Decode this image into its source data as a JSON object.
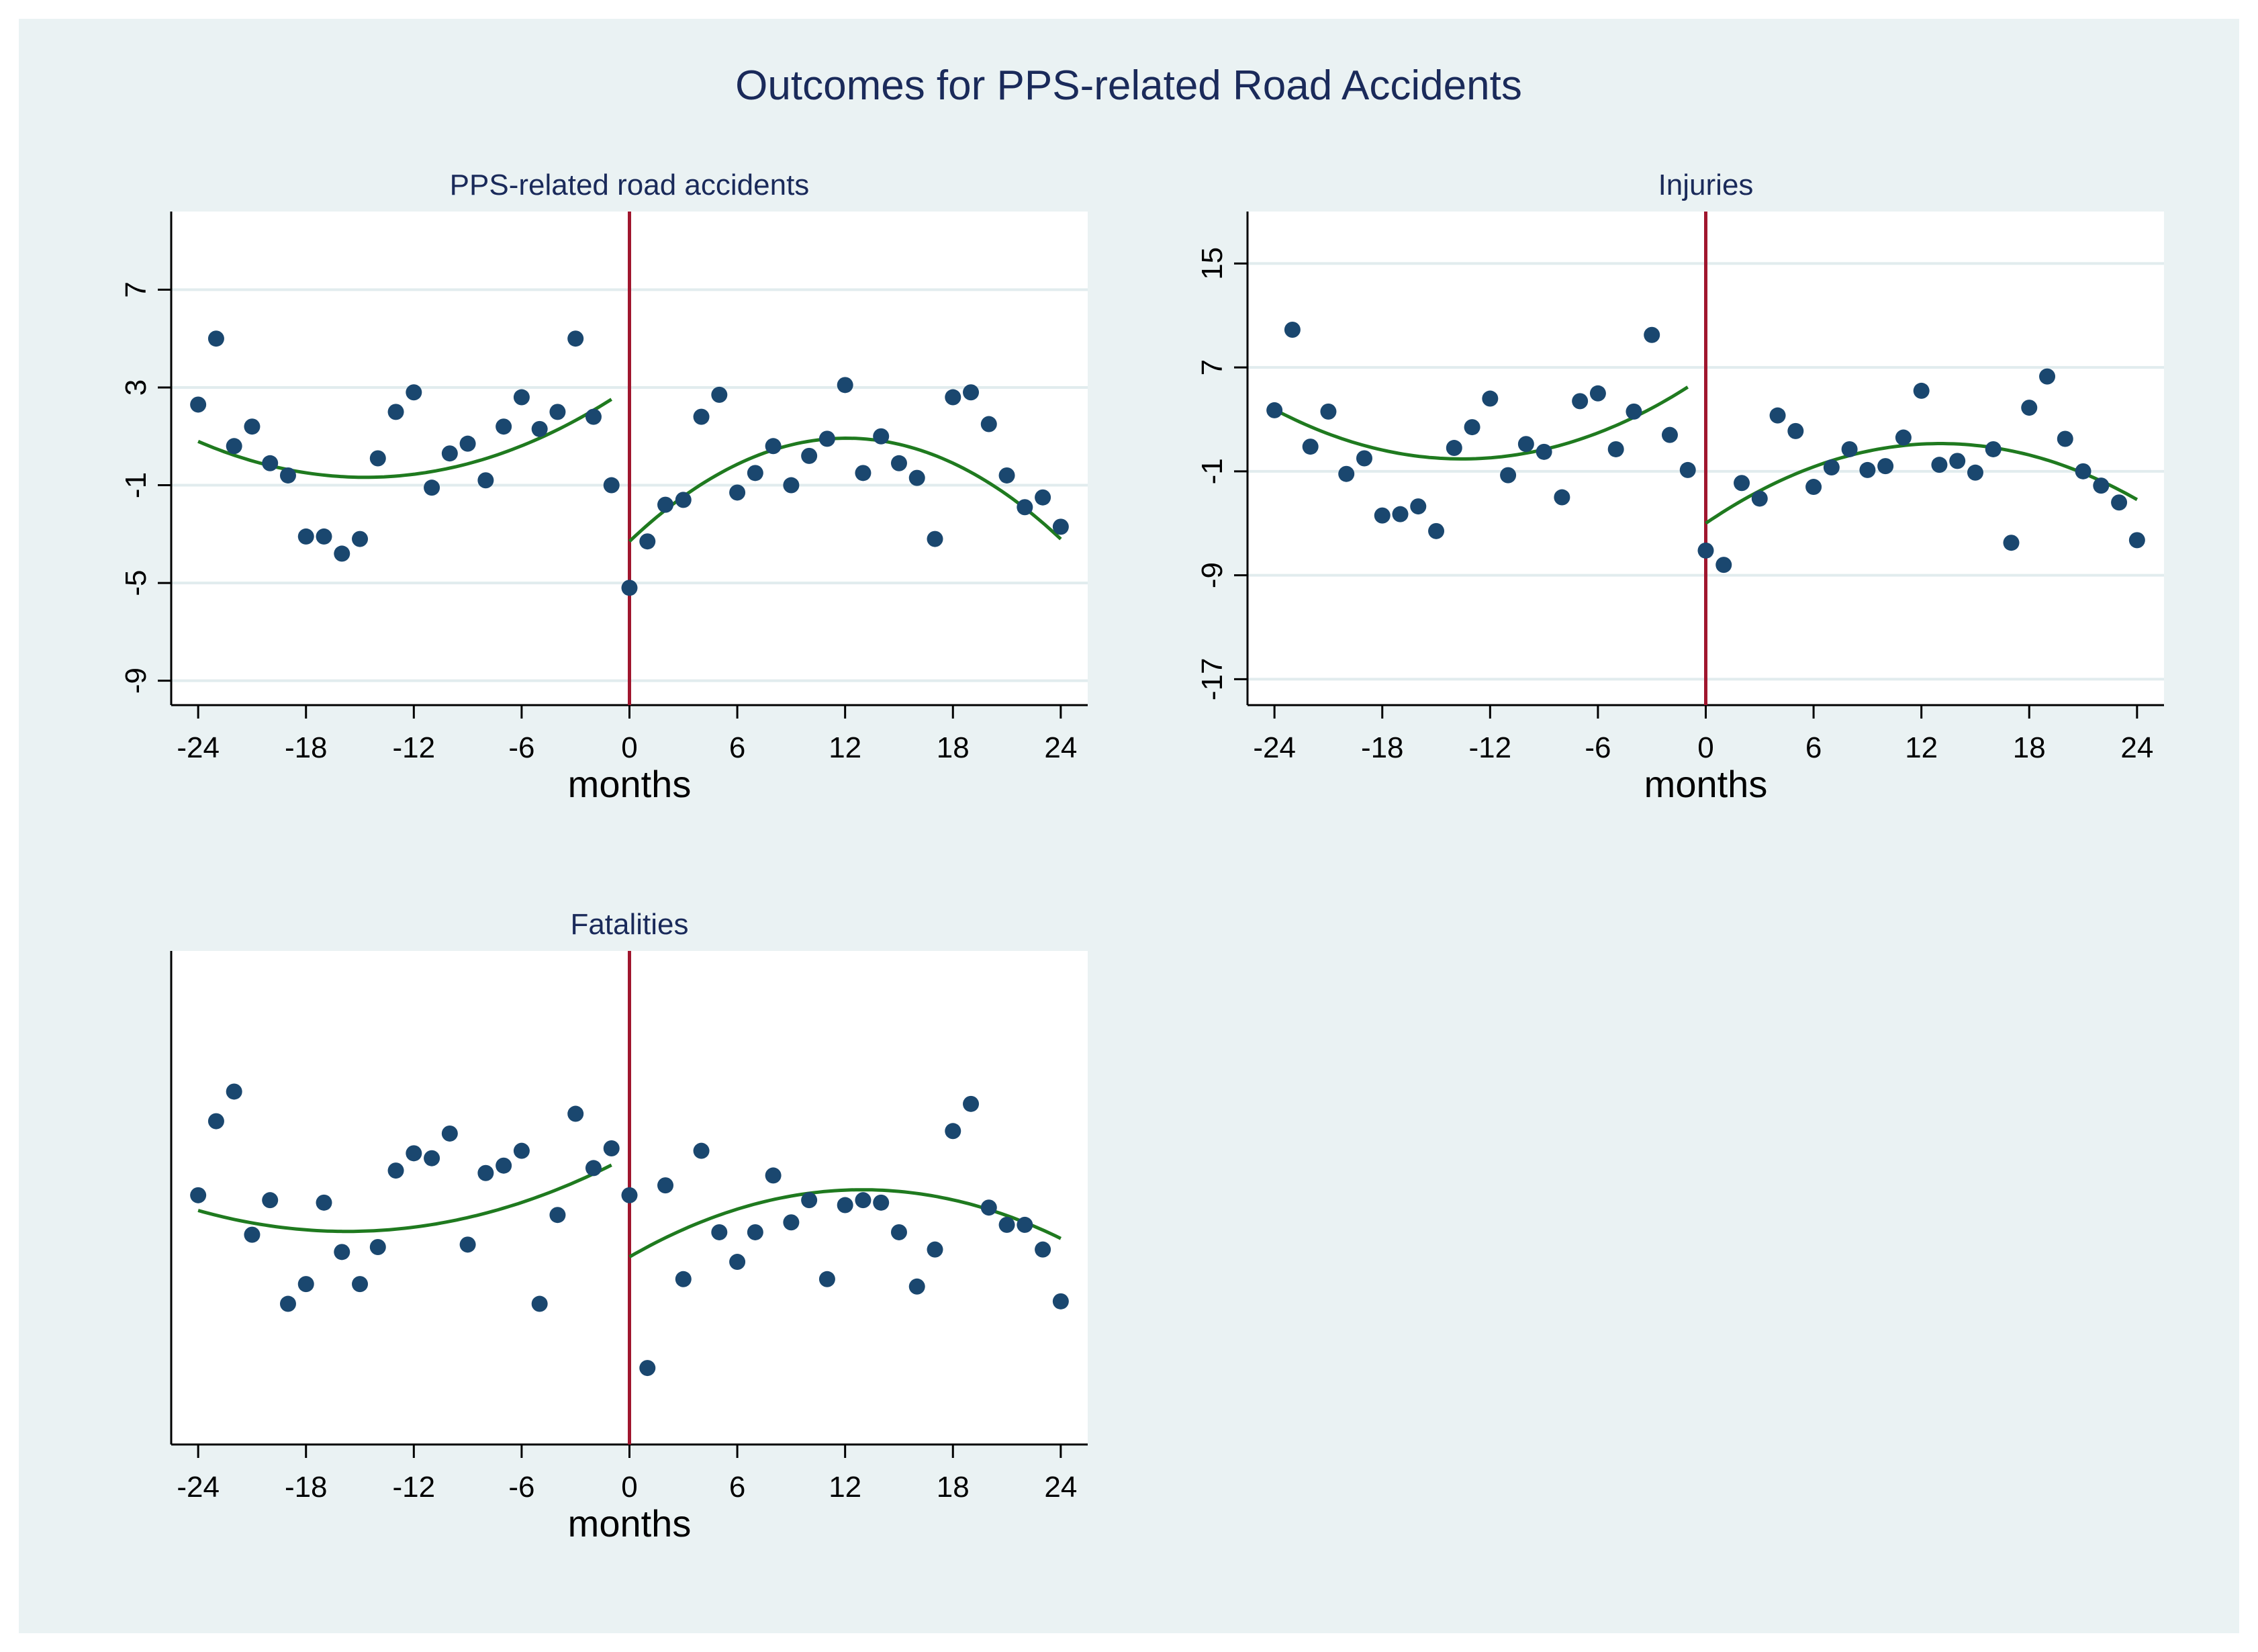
{
  "figure": {
    "title": "Outcomes for PPS-related Road Accidents",
    "colors": {
      "outer_background": "#eaf2f3",
      "plot_background": "#ffffff",
      "gridline": "#e1ecee",
      "axis": "#000000",
      "marker": "#1a476f",
      "fit_line": "#1f7a1f",
      "cutoff_line": "#a0162e",
      "title_text": "#1a2a5a",
      "subtitle_text": "#1a2a5a"
    }
  },
  "chart_data": [
    {
      "type": "scatter",
      "title": "PPS-related road accidents",
      "xlabel": "months",
      "ylabel": "",
      "xlim": [
        -25.5,
        25.5
      ],
      "ylim": [
        -10,
        10.2
      ],
      "xticks": [
        -24,
        -18,
        -12,
        -6,
        0,
        6,
        12,
        18,
        24
      ],
      "yticks": [
        -9,
        -5,
        -1,
        3,
        7
      ],
      "grid": true,
      "cutoff_x": 0,
      "points": [
        [
          -24,
          2.3
        ],
        [
          -23,
          5
        ],
        [
          -22,
          0.6
        ],
        [
          -21,
          1.4
        ],
        [
          -20,
          -0.1
        ],
        [
          -19,
          -0.6
        ],
        [
          -18,
          -3.1
        ],
        [
          -17,
          -3.1
        ],
        [
          -16,
          -3.8
        ],
        [
          -15,
          -3.2
        ],
        [
          -14,
          0.1
        ],
        [
          -13,
          2
        ],
        [
          -12,
          2.8
        ],
        [
          -11,
          -1.1
        ],
        [
          -10,
          0.3
        ],
        [
          -9,
          0.7
        ],
        [
          -8,
          -0.8
        ],
        [
          -7,
          1.4
        ],
        [
          -6,
          2.6
        ],
        [
          -5,
          1.3
        ],
        [
          -4,
          2
        ],
        [
          -3,
          5
        ],
        [
          -2,
          1.8
        ],
        [
          -1,
          -1
        ],
        [
          0,
          -5.2
        ],
        [
          1,
          -3.3
        ],
        [
          2,
          -1.8
        ],
        [
          3,
          -1.6
        ],
        [
          4,
          1.8
        ],
        [
          5,
          2.7
        ],
        [
          6,
          -1.3
        ],
        [
          7,
          -0.5
        ],
        [
          8,
          0.6
        ],
        [
          9,
          -1
        ],
        [
          10,
          0.2
        ],
        [
          11,
          0.9
        ],
        [
          12,
          3.1
        ],
        [
          13,
          -0.5
        ],
        [
          14,
          1
        ],
        [
          15,
          -0.1
        ],
        [
          16,
          -0.7
        ],
        [
          17,
          -3.2
        ],
        [
          18,
          2.6
        ],
        [
          19,
          2.8
        ],
        [
          20,
          1.5
        ],
        [
          21,
          -0.6
        ],
        [
          22,
          -1.9
        ],
        [
          23,
          -1.5
        ],
        [
          24,
          -2.7
        ]
      ],
      "fit_pre": {
        "x_range": [
          -24,
          -1
        ],
        "a": 3.0,
        "b": 0.5,
        "c": 0.017
      },
      "fit_post": {
        "x_range": [
          0,
          24
        ],
        "a": -3.3,
        "b": 0.7,
        "c": -0.029
      }
    },
    {
      "type": "scatter",
      "title": "Injuries",
      "xlabel": "months",
      "ylabel": "",
      "xlim": [
        -25.5,
        25.5
      ],
      "ylim": [
        -19,
        19
      ],
      "xticks": [
        -24,
        -18,
        -12,
        -6,
        0,
        6,
        12,
        18,
        24
      ],
      "yticks": [
        -17,
        -9,
        -1,
        7,
        15
      ],
      "grid": true,
      "cutoff_x": 0,
      "points": [
        [
          -24,
          3.7
        ],
        [
          -23,
          9.9
        ],
        [
          -22,
          0.9
        ],
        [
          -21,
          3.6
        ],
        [
          -20,
          -1.2
        ],
        [
          -19,
          0
        ],
        [
          -18,
          -4.4
        ],
        [
          -17,
          -4.3
        ],
        [
          -16,
          -3.7
        ],
        [
          -15,
          -5.6
        ],
        [
          -14,
          0.8
        ],
        [
          -13,
          2.4
        ],
        [
          -12,
          4.6
        ],
        [
          -11,
          -1.3
        ],
        [
          -10,
          1.1
        ],
        [
          -9,
          0.5
        ],
        [
          -8,
          -3
        ],
        [
          -7,
          4.4
        ],
        [
          -6,
          5
        ],
        [
          -5,
          0.7
        ],
        [
          -4,
          3.6
        ],
        [
          -3,
          9.5
        ],
        [
          -2,
          1.8
        ],
        [
          -1,
          -0.9
        ],
        [
          0,
          -7.1
        ],
        [
          1,
          -8.2
        ],
        [
          2,
          -1.9
        ],
        [
          3,
          -3.1
        ],
        [
          4,
          3.3
        ],
        [
          5,
          2.1
        ],
        [
          6,
          -2.2
        ],
        [
          7,
          -0.7
        ],
        [
          8,
          0.7
        ],
        [
          9,
          -0.9
        ],
        [
          10,
          -0.6
        ],
        [
          11,
          1.6
        ],
        [
          12,
          5.2
        ],
        [
          13,
          -0.5
        ],
        [
          14,
          -0.2
        ],
        [
          15,
          -1.1
        ],
        [
          16,
          0.7
        ],
        [
          17,
          -6.5
        ],
        [
          18,
          3.9
        ],
        [
          19,
          6.3
        ],
        [
          20,
          1.5
        ],
        [
          21,
          -1
        ],
        [
          22,
          -2.1
        ],
        [
          23,
          -3.4
        ],
        [
          24,
          -6.3
        ]
      ],
      "fit_pre": {
        "x_range": [
          -24,
          -1
        ],
        "a": 6.4,
        "b": 0.95,
        "c": 0.035
      },
      "fit_post": {
        "x_range": [
          0,
          24
        ],
        "a": -5.0,
        "b": 0.94,
        "c": -0.036
      }
    },
    {
      "type": "scatter",
      "title": "Fatalities",
      "xlabel": "months",
      "ylabel": "",
      "xlim": [
        -25.5,
        25.5
      ],
      "ylim": [
        -10,
        10
      ],
      "xticks": [
        -24,
        -18,
        -12,
        -6,
        0,
        6,
        12,
        18,
        24
      ],
      "yticks": [],
      "grid": false,
      "cutoff_x": 0,
      "points": [
        [
          -24,
          0.1
        ],
        [
          -23,
          3.1
        ],
        [
          -22,
          4.3
        ],
        [
          -21,
          -1.5
        ],
        [
          -20,
          -0.1
        ],
        [
          -19,
          -4.3
        ],
        [
          -18,
          -3.5
        ],
        [
          -17,
          -0.2
        ],
        [
          -16,
          -2.2
        ],
        [
          -15,
          -3.5
        ],
        [
          -14,
          -2
        ],
        [
          -13,
          1.1
        ],
        [
          -12,
          1.8
        ],
        [
          -11,
          1.6
        ],
        [
          -10,
          2.6
        ],
        [
          -9,
          -1.9
        ],
        [
          -8,
          1
        ],
        [
          -7,
          1.3
        ],
        [
          -6,
          1.9
        ],
        [
          -5,
          -4.3
        ],
        [
          -4,
          -0.7
        ],
        [
          -3,
          3.4
        ],
        [
          -2,
          1.2
        ],
        [
          -1,
          2
        ],
        [
          0,
          0.1
        ],
        [
          1,
          -6.9
        ],
        [
          2,
          0.5
        ],
        [
          3,
          -3.3
        ],
        [
          4,
          1.9
        ],
        [
          5,
          -1.4
        ],
        [
          6,
          -2.6
        ],
        [
          7,
          -1.4
        ],
        [
          8,
          0.9
        ],
        [
          9,
          -1
        ],
        [
          10,
          -0.1
        ],
        [
          11,
          -3.3
        ],
        [
          12,
          -0.3
        ],
        [
          13,
          -0.1
        ],
        [
          14,
          -0.2
        ],
        [
          15,
          -1.4
        ],
        [
          16,
          -3.6
        ],
        [
          17,
          -2.1
        ],
        [
          18,
          2.7
        ],
        [
          19,
          3.8
        ],
        [
          20,
          -0.4
        ],
        [
          21,
          -1.1
        ],
        [
          22,
          -1.1
        ],
        [
          23,
          -2.1
        ],
        [
          24,
          -4.2
        ]
      ],
      "fit_pre": {
        "x_range": [
          -24,
          -1
        ],
        "a": 1.7,
        "b": 0.39,
        "c": 0.0124
      },
      "fit_post": {
        "x_range": [
          0,
          24
        ],
        "a": -2.4,
        "b": 0.42,
        "c": -0.0162
      }
    }
  ]
}
